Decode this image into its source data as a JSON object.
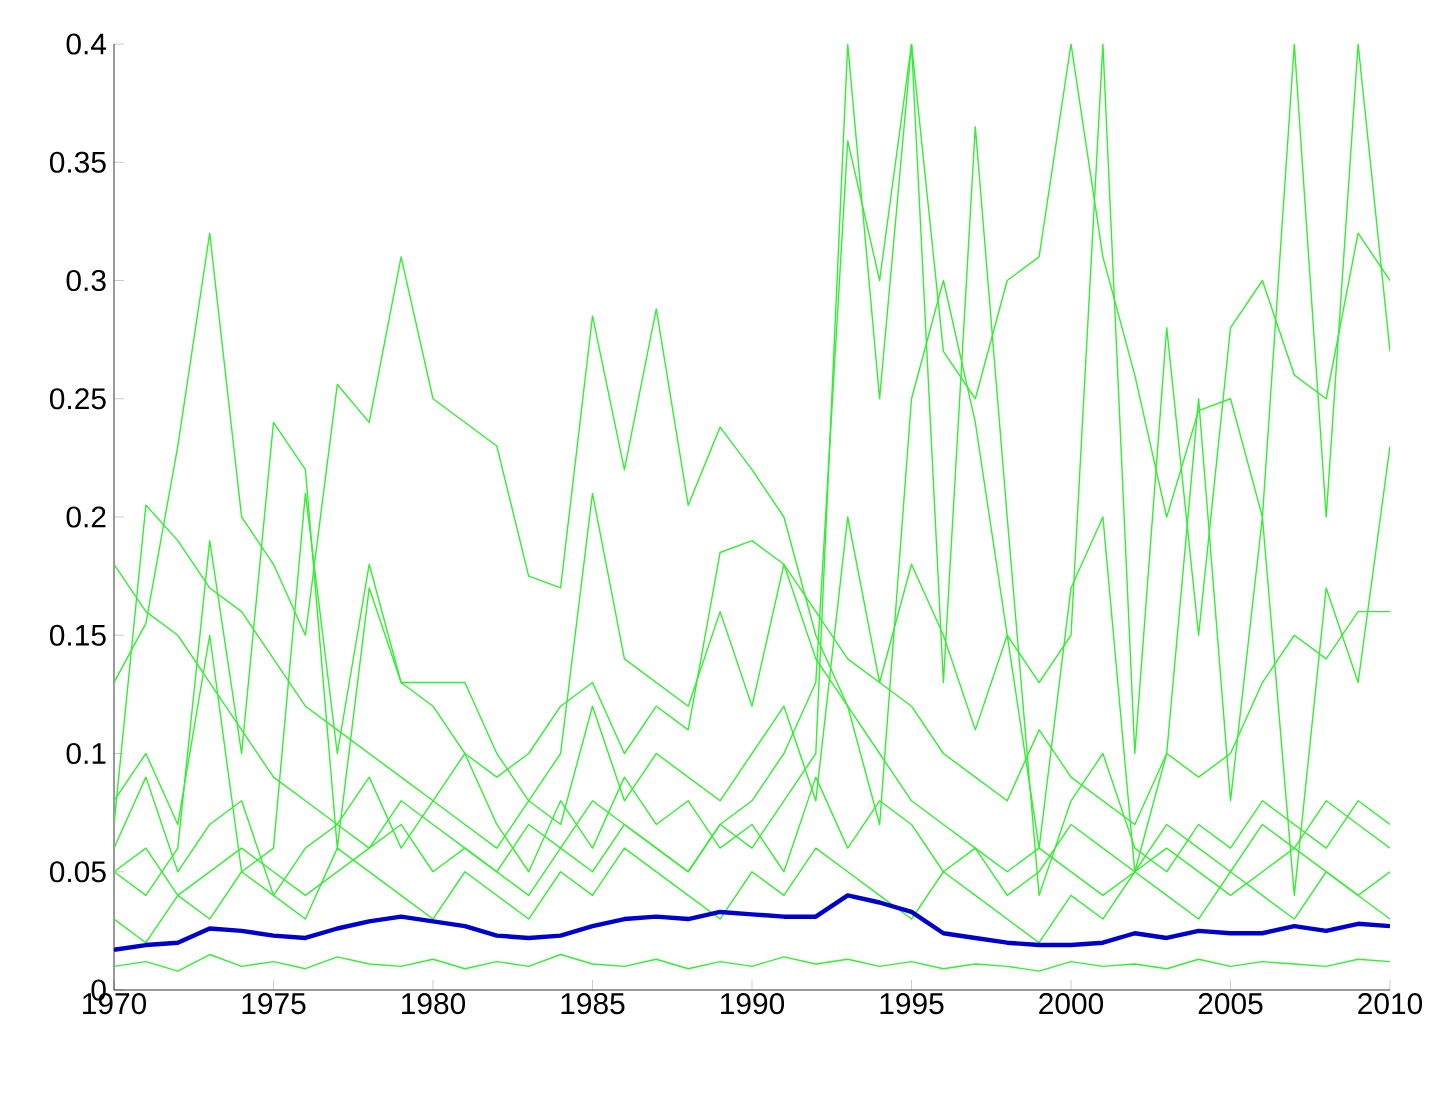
{
  "chart_data": {
    "type": "line",
    "x": [
      1970,
      1971,
      1972,
      1973,
      1974,
      1975,
      1976,
      1977,
      1978,
      1979,
      1980,
      1981,
      1982,
      1983,
      1984,
      1985,
      1986,
      1987,
      1988,
      1989,
      1990,
      1991,
      1992,
      1993,
      1994,
      1995,
      1996,
      1997,
      1998,
      1999,
      2000,
      2001,
      2002,
      2003,
      2004,
      2005,
      2006,
      2007,
      2008,
      2009,
      2010
    ],
    "xlim": [
      1970,
      2010
    ],
    "xticks": [
      1970,
      1975,
      1980,
      1985,
      1990,
      1995,
      2000,
      2005,
      2010
    ],
    "ylim": [
      0,
      0.4
    ],
    "yticks": [
      0,
      0.05,
      0.1,
      0.15,
      0.2,
      0.25,
      0.3,
      0.35,
      0.4
    ],
    "marker": "none",
    "line_style": "solid",
    "series": [
      {
        "color": "#33ee33",
        "values": [
          0.13,
          0.155,
          0.23,
          0.32,
          0.2,
          0.18,
          0.15,
          0.256,
          0.24,
          0.31,
          0.25,
          0.24,
          0.23,
          0.175,
          0.17,
          0.285,
          0.22,
          0.288,
          0.205,
          0.238,
          0.22,
          0.2,
          0.15,
          0.12,
          0.1,
          0.08,
          0.07,
          0.06,
          0.05,
          0.06,
          0.05,
          0.04,
          0.05,
          0.06,
          0.05,
          0.04,
          0.05,
          0.06,
          0.05,
          0.04,
          0.05
        ]
      },
      {
        "color": "#33ee33",
        "values": [
          0.05,
          0.06,
          0.04,
          0.05,
          0.06,
          0.05,
          0.04,
          0.05,
          0.06,
          0.07,
          0.05,
          0.06,
          0.05,
          0.04,
          0.06,
          0.05,
          0.07,
          0.06,
          0.05,
          0.07,
          0.06,
          0.08,
          0.1,
          0.4,
          0.25,
          0.4,
          0.13,
          0.365,
          0.2,
          0.04,
          0.08,
          0.1,
          0.06,
          0.05,
          0.07,
          0.06,
          0.08,
          0.07,
          0.06,
          0.08,
          0.07
        ]
      },
      {
        "color": "#33ee33",
        "values": [
          0.18,
          0.16,
          0.15,
          0.13,
          0.11,
          0.09,
          0.08,
          0.07,
          0.06,
          0.08,
          0.07,
          0.06,
          0.05,
          0.07,
          0.06,
          0.08,
          0.07,
          0.06,
          0.05,
          0.07,
          0.08,
          0.1,
          0.13,
          0.359,
          0.3,
          0.4,
          0.27,
          0.25,
          0.3,
          0.31,
          0.4,
          0.31,
          0.26,
          0.2,
          0.245,
          0.25,
          0.2,
          0.4,
          0.2,
          0.4,
          0.27
        ]
      },
      {
        "color": "#33ee33",
        "values": [
          0.07,
          0.205,
          0.19,
          0.17,
          0.16,
          0.14,
          0.12,
          0.11,
          0.1,
          0.09,
          0.08,
          0.07,
          0.06,
          0.08,
          0.1,
          0.21,
          0.14,
          0.13,
          0.12,
          0.16,
          0.12,
          0.18,
          0.14,
          0.12,
          0.07,
          0.25,
          0.3,
          0.24,
          0.15,
          0.13,
          0.15,
          0.4,
          0.1,
          0.28,
          0.15,
          0.28,
          0.3,
          0.26,
          0.25,
          0.32,
          0.3
        ]
      },
      {
        "color": "#33ee33",
        "values": [
          0.05,
          0.04,
          0.06,
          0.19,
          0.1,
          0.24,
          0.22,
          0.06,
          0.17,
          0.13,
          0.12,
          0.1,
          0.09,
          0.1,
          0.12,
          0.13,
          0.1,
          0.12,
          0.11,
          0.185,
          0.19,
          0.18,
          0.16,
          0.14,
          0.13,
          0.12,
          0.1,
          0.09,
          0.08,
          0.11,
          0.09,
          0.08,
          0.07,
          0.1,
          0.09,
          0.1,
          0.13,
          0.15,
          0.14,
          0.16,
          0.16
        ]
      },
      {
        "color": "#33ee33",
        "values": [
          0.08,
          0.1,
          0.07,
          0.15,
          0.05,
          0.06,
          0.21,
          0.1,
          0.18,
          0.13,
          0.13,
          0.13,
          0.1,
          0.08,
          0.07,
          0.12,
          0.08,
          0.1,
          0.09,
          0.08,
          0.1,
          0.12,
          0.08,
          0.2,
          0.13,
          0.18,
          0.15,
          0.11,
          0.15,
          0.06,
          0.17,
          0.2,
          0.05,
          0.1,
          0.25,
          0.08,
          0.2,
          0.04,
          0.17,
          0.13,
          0.23
        ]
      },
      {
        "color": "#33ee33",
        "values": [
          0.06,
          0.09,
          0.05,
          0.07,
          0.08,
          0.04,
          0.06,
          0.07,
          0.09,
          0.06,
          0.08,
          0.1,
          0.07,
          0.05,
          0.08,
          0.06,
          0.09,
          0.07,
          0.08,
          0.06,
          0.07,
          0.05,
          0.09,
          0.06,
          0.08,
          0.07,
          0.05,
          0.06,
          0.04,
          0.05,
          0.07,
          0.06,
          0.05,
          0.07,
          0.06,
          0.05,
          0.07,
          0.06,
          0.08,
          0.07,
          0.06
        ]
      },
      {
        "color": "#33ee33",
        "values": [
          0.03,
          0.02,
          0.04,
          0.03,
          0.05,
          0.04,
          0.03,
          0.06,
          0.05,
          0.04,
          0.03,
          0.05,
          0.04,
          0.03,
          0.05,
          0.04,
          0.06,
          0.05,
          0.04,
          0.03,
          0.05,
          0.04,
          0.06,
          0.05,
          0.04,
          0.03,
          0.05,
          0.04,
          0.03,
          0.02,
          0.04,
          0.03,
          0.05,
          0.04,
          0.03,
          0.05,
          0.04,
          0.03,
          0.05,
          0.04,
          0.03
        ]
      },
      {
        "color": "#33ee33",
        "values": [
          0.01,
          0.012,
          0.008,
          0.015,
          0.01,
          0.012,
          0.009,
          0.014,
          0.011,
          0.01,
          0.013,
          0.009,
          0.012,
          0.01,
          0.015,
          0.011,
          0.01,
          0.013,
          0.009,
          0.012,
          0.01,
          0.014,
          0.011,
          0.013,
          0.01,
          0.012,
          0.009,
          0.011,
          0.01,
          0.008,
          0.012,
          0.01,
          0.011,
          0.009,
          0.013,
          0.01,
          0.012,
          0.011,
          0.01,
          0.013,
          0.012
        ]
      },
      {
        "color": "#0000cc",
        "values": [
          0.017,
          0.019,
          0.02,
          0.026,
          0.025,
          0.023,
          0.022,
          0.026,
          0.029,
          0.031,
          0.029,
          0.027,
          0.023,
          0.022,
          0.023,
          0.027,
          0.03,
          0.031,
          0.03,
          0.033,
          0.032,
          0.031,
          0.031,
          0.04,
          0.037,
          0.033,
          0.024,
          0.022,
          0.02,
          0.019,
          0.019,
          0.02,
          0.024,
          0.022,
          0.025,
          0.024,
          0.024,
          0.027,
          0.025,
          0.028,
          0.027
        ]
      }
    ]
  }
}
